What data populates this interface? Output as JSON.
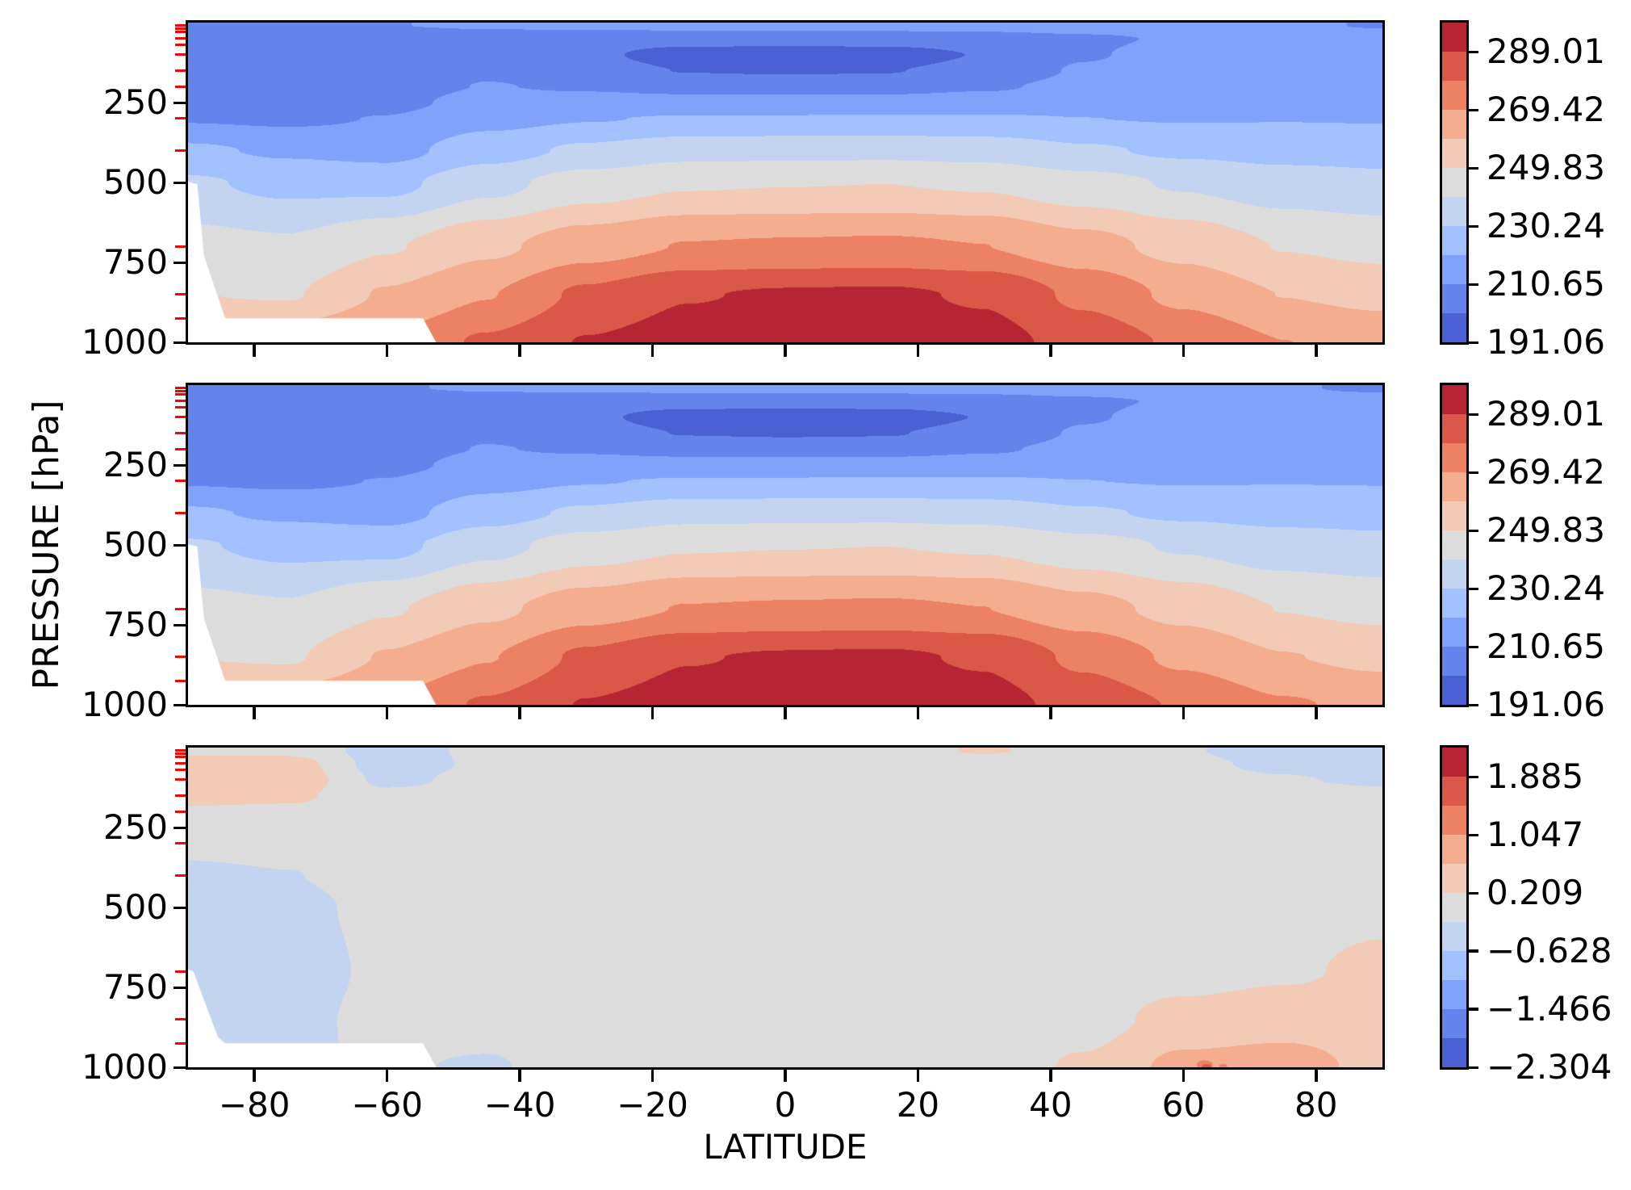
{
  "figure": {
    "background": "#ffffff"
  },
  "chart_data": {
    "type": "filled_contour",
    "description": "Zonal-mean temperature latitude-pressure cross sections: two model fields and their difference",
    "xlabel": "LATITUDE",
    "ylabel": "PRESSURE [hPa]",
    "x_range": [
      -90,
      90
    ],
    "y_range_hpa": [
      0,
      1000
    ],
    "x_ticks": {
      "values": [
        -80,
        -60,
        -40,
        -20,
        0,
        20,
        40,
        60,
        80
      ],
      "labels": [
        "−80",
        "−60",
        "−40",
        "−20",
        "0",
        "20",
        "40",
        "60",
        "80"
      ]
    },
    "y_ticks": {
      "values": [
        250,
        500,
        750,
        1000
      ],
      "labels": [
        "250",
        "500",
        "750",
        "1000"
      ]
    },
    "minor_y_ticks_hpa": [
      10,
      20,
      30,
      50,
      70,
      100,
      150,
      200,
      250,
      300,
      400,
      500,
      700,
      850,
      925
    ],
    "minor_y_tick_color": "#ff0000",
    "grid_lines": false,
    "colormap_bands": [
      "#4961D2",
      "#6484EC",
      "#81A2FB",
      "#A2C1FE",
      "#C2D4F0",
      "#DDDCDC",
      "#F2CAB5",
      "#F5AD90",
      "#EC8164",
      "#D95847",
      "#B72433"
    ],
    "panels": [
      {
        "id": "temperature-model-a",
        "value_min": 191.06,
        "value_max": 298.805,
        "colorbar_ticks": {
          "values": [
            289.01,
            269.42,
            249.83,
            230.24,
            210.65,
            191.06
          ],
          "labels": [
            "289.01",
            "269.42",
            "249.83",
            "230.24",
            "210.65",
            "191.06"
          ]
        },
        "grid": {
          "lats": [
            -90,
            -75,
            -60,
            -45,
            -30,
            -15,
            0,
            15,
            30,
            45,
            60,
            75,
            90
          ],
          "pressures": [
            10,
            50,
            100,
            150,
            200,
            250,
            300,
            400,
            500,
            700,
            850,
            1000
          ],
          "values": [
            [
              210.0,
              209.5,
              210.5,
              211.5,
              212.0,
              212.3,
              212.5,
              212.8,
              213.2,
              213.8,
              214.3,
              211.5,
              210.3
            ],
            [
              203.5,
              203.0,
              204.5,
              206.5,
              206.8,
              206.6,
              206.5,
              206.8,
              207.5,
              209.5,
              211.5,
              213.0,
              213.8
            ],
            [
              204.0,
              203.5,
              205.5,
              208.5,
              203.5,
              195.5,
              194.0,
              195.0,
              201.5,
              210.0,
              213.5,
              215.5,
              216.5
            ],
            [
              204.5,
              204.0,
              206.0,
              209.5,
              206.5,
              200.5,
              199.8,
              200.3,
              205.0,
              211.5,
              214.5,
              216.5,
              217.5
            ],
            [
              205.0,
              204.5,
              206.5,
              211.0,
              209.5,
              207.5,
              207.0,
              207.3,
              209.5,
              213.0,
              215.5,
              217.2,
              218.2
            ],
            [
              205.5,
              205.0,
              208.0,
              214.0,
              214.5,
              214.2,
              214.0,
              214.2,
              215.0,
              216.5,
              217.5,
              218.6,
              219.4
            ],
            [
              210.0,
              209.0,
              211.0,
              217.5,
              220.0,
              221.2,
              221.3,
              221.5,
              221.5,
              220.5,
              220.0,
              220.2,
              220.0
            ],
            [
              222.0,
              219.0,
              217.0,
              226.0,
              232.0,
              236.5,
              237.0,
              237.3,
              236.0,
              231.5,
              228.5,
              227.0,
              226.8
            ],
            [
              231.5,
              228.0,
              227.5,
              237.0,
              244.5,
              248.8,
              249.5,
              249.8,
              248.5,
              243.5,
              239.0,
              234.5,
              232.5
            ],
            [
              243.5,
              241.5,
              249.0,
              257.5,
              265.0,
              269.8,
              270.5,
              271.0,
              269.5,
              263.0,
              256.5,
              249.5,
              246.8
            ],
            [
              250.0,
              249.0,
              260.5,
              269.0,
              281.0,
              288.5,
              290.0,
              290.5,
              288.0,
              277.0,
              267.0,
              259.5,
              257.0
            ],
            [
              263.0,
              266.5,
              271.0,
              280.5,
              289.5,
              293.5,
              294.5,
              295.0,
              292.5,
              285.5,
              277.5,
              269.5,
              266.5
            ]
          ]
        },
        "mask_polygon_lat_hpa": [
          [
            -90.5,
            495
          ],
          [
            -88.6,
            505
          ],
          [
            -87.6,
            730
          ],
          [
            -84.4,
            925
          ],
          [
            -54.6,
            925
          ],
          [
            -52.3,
            1012
          ],
          [
            -90.5,
            1012
          ]
        ],
        "overlays": []
      },
      {
        "id": "temperature-model-b",
        "value_min": 191.06,
        "value_max": 298.805,
        "colorbar_ticks": {
          "values": [
            289.01,
            269.42,
            249.83,
            230.24,
            210.65,
            191.06
          ],
          "labels": [
            "289.01",
            "269.42",
            "249.83",
            "230.24",
            "210.65",
            "191.06"
          ]
        },
        "grid": {
          "lats": [
            -90,
            -75,
            -60,
            -45,
            -30,
            -15,
            0,
            15,
            30,
            45,
            60,
            75,
            90
          ],
          "pressures": [
            10,
            50,
            100,
            150,
            200,
            250,
            300,
            400,
            500,
            700,
            850,
            1000
          ],
          "values": [
            [
              210.0,
              209.5,
              210.1,
              211.5,
              212.0,
              212.3,
              212.5,
              212.8,
              213.2,
              213.8,
              214.3,
              211.1,
              209.8
            ],
            [
              203.9,
              203.4,
              204.1,
              206.5,
              206.8,
              206.6,
              206.5,
              206.8,
              207.5,
              209.5,
              211.5,
              212.7,
              213.35
            ],
            [
              204.5,
              204.0,
              205.2,
              208.5,
              203.3,
              195.3,
              193.8,
              194.8,
              201.3,
              210.0,
              213.4,
              215.3,
              216.2
            ],
            [
              204.85,
              204.3,
              205.9,
              209.5,
              206.5,
              200.4,
              199.6,
              200.1,
              205.0,
              211.5,
              214.5,
              216.45,
              217.4
            ],
            [
              205.15,
              204.6,
              206.45,
              211.0,
              209.5,
              207.5,
              207.0,
              207.3,
              209.5,
              213.0,
              215.5,
              217.2,
              218.16
            ],
            [
              205.52,
              205.02,
              207.96,
              214.0,
              214.5,
              214.2,
              214.0,
              214.2,
              215.0,
              216.5,
              217.5,
              218.6,
              219.4
            ],
            [
              209.88,
              208.9,
              210.95,
              217.5,
              220.0,
              221.2,
              221.3,
              221.5,
              221.5,
              220.5,
              220.0,
              220.22,
              220.05
            ],
            [
              221.72,
              218.78,
              216.92,
              225.98,
              232.0,
              236.5,
              237.0,
              237.3,
              236.0,
              231.5,
              228.5,
              227.02,
              226.88
            ],
            [
              231.15,
              227.7,
              227.38,
              236.96,
              244.5,
              248.8,
              249.5,
              249.8,
              248.5,
              243.5,
              239.02,
              234.55,
              232.62
            ],
            [
              243.2,
              241.15,
              248.85,
              257.44,
              265.0,
              269.8,
              270.5,
              271.0,
              269.5,
              263.0,
              256.55,
              249.65,
              247.1
            ],
            [
              249.75,
              248.7,
              260.38,
              268.92,
              280.98,
              288.5,
              290.0,
              290.5,
              288.0,
              277.05,
              267.35,
              259.95,
              257.42
            ],
            [
              262.8,
              266.25,
              270.82,
              280.26,
              289.45,
              293.5,
              294.5,
              295.0,
              292.5,
              285.76,
              278.25,
              270.32,
              267.0
            ]
          ]
        },
        "mask_polygon_lat_hpa": [
          [
            -90.5,
            495
          ],
          [
            -88.6,
            505
          ],
          [
            -87.6,
            730
          ],
          [
            -84.4,
            925
          ],
          [
            -54.6,
            925
          ],
          [
            -52.3,
            1012
          ],
          [
            -90.5,
            1012
          ]
        ],
        "overlays": []
      },
      {
        "id": "temperature-difference",
        "value_min": -2.304,
        "value_max": 2.304,
        "colorbar_ticks": {
          "values": [
            1.885,
            1.047,
            0.209,
            -0.628,
            -1.466,
            -2.304
          ],
          "labels": [
            "1.885",
            "1.047",
            "0.209",
            "−0.628",
            "−1.466",
            "−2.304"
          ]
        },
        "grid": {
          "lats": [
            -90,
            -75,
            -60,
            -45,
            -30,
            -15,
            0,
            15,
            30,
            45,
            60,
            75,
            90
          ],
          "pressures": [
            10,
            50,
            100,
            150,
            200,
            250,
            300,
            400,
            500,
            700,
            850,
            1000
          ],
          "values": [
            [
              0.12,
              0.1,
              -0.4,
              -0.12,
              0.0,
              0.0,
              0.0,
              0.05,
              0.24,
              0.05,
              -0.18,
              -0.4,
              -0.5
            ],
            [
              0.4,
              0.4,
              -0.4,
              -0.15,
              0.0,
              0.0,
              0.0,
              0.0,
              0.05,
              0.0,
              -0.12,
              -0.3,
              -0.45
            ],
            [
              0.5,
              0.5,
              -0.3,
              -0.1,
              -0.05,
              -0.05,
              -0.05,
              -0.05,
              0.0,
              0.0,
              -0.08,
              -0.18,
              -0.28
            ],
            [
              0.35,
              0.3,
              -0.12,
              -0.05,
              0.0,
              0.0,
              0.0,
              0.0,
              0.0,
              0.0,
              0.0,
              -0.05,
              -0.1
            ],
            [
              0.15,
              0.12,
              -0.05,
              0.0,
              0.0,
              0.0,
              0.0,
              0.0,
              0.0,
              0.0,
              0.0,
              0.0,
              -0.04
            ],
            [
              0.02,
              0.02,
              -0.04,
              0.0,
              0.0,
              0.0,
              0.0,
              0.0,
              0.0,
              0.0,
              0.0,
              0.0,
              0.0
            ],
            [
              -0.12,
              -0.1,
              -0.05,
              0.0,
              0.0,
              0.0,
              0.0,
              0.0,
              0.0,
              0.0,
              0.0,
              0.0,
              0.05
            ],
            [
              -0.28,
              -0.22,
              -0.08,
              -0.02,
              0.0,
              0.0,
              0.0,
              0.0,
              0.0,
              0.0,
              0.0,
              0.02,
              0.08
            ],
            [
              -0.35,
              -0.3,
              -0.12,
              -0.04,
              0.0,
              0.0,
              0.0,
              0.0,
              0.0,
              0.0,
              0.02,
              0.05,
              0.12
            ],
            [
              -0.3,
              -0.35,
              -0.15,
              -0.06,
              0.0,
              0.0,
              0.0,
              0.0,
              0.0,
              0.0,
              0.05,
              0.15,
              0.3
            ],
            [
              -0.25,
              -0.3,
              -0.12,
              -0.08,
              -0.02,
              0.0,
              0.0,
              0.0,
              0.0,
              0.05,
              0.35,
              0.45,
              0.42
            ],
            [
              -0.2,
              -0.25,
              -0.18,
              -0.24,
              -0.05,
              0.0,
              0.0,
              0.0,
              0.0,
              0.26,
              0.75,
              0.82,
              0.5
            ]
          ]
        },
        "mask_polygon_lat_hpa": [
          [
            -90.5,
            690
          ],
          [
            -89.2,
            700
          ],
          [
            -85.5,
            905
          ],
          [
            -84.4,
            925
          ],
          [
            -54.6,
            925
          ],
          [
            -52.3,
            1012
          ],
          [
            -90.5,
            1012
          ]
        ],
        "overlays": [
          {
            "lat": 62.5,
            "p": 985,
            "rx_deg": 2.0,
            "ry_hpa": 25,
            "band": 7
          },
          {
            "lat": 63.2,
            "p": 992,
            "rx_deg": 1.2,
            "ry_hpa": 14,
            "band": 8
          },
          {
            "lat": 63.5,
            "p": 997,
            "rx_deg": 0.7,
            "ry_hpa": 7,
            "band": 9
          },
          {
            "lat": 67.0,
            "p": 988,
            "rx_deg": 1.6,
            "ry_hpa": 16,
            "band": 7
          },
          {
            "lat": 66.0,
            "p": 996,
            "rx_deg": 0.6,
            "ry_hpa": 6,
            "band": 8
          },
          {
            "lat": 70.0,
            "p": 991,
            "rx_deg": 1.3,
            "ry_hpa": 12,
            "band": 7
          },
          {
            "lat": 72.5,
            "p": 994,
            "rx_deg": 0.8,
            "ry_hpa": 8,
            "band": 7
          }
        ]
      }
    ]
  }
}
